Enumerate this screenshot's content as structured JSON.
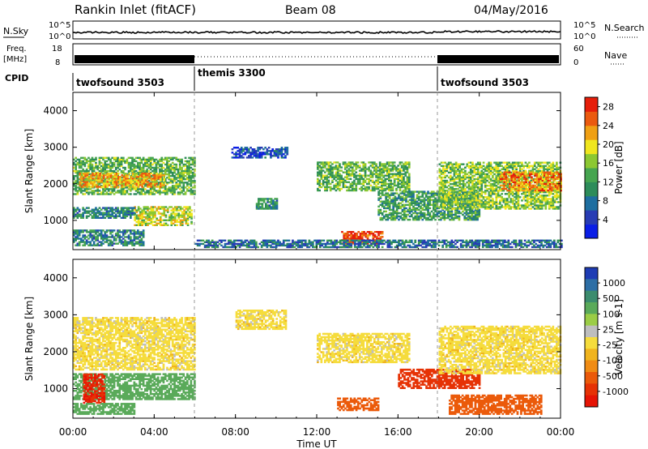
{
  "header": {
    "title": "Rankin Inlet (fitACF)",
    "beam": "Beam 08",
    "date": "04/May/2016"
  },
  "noise_panel": {
    "left_label": "N.Sky",
    "right_label": "N.Search",
    "left_ticks": [
      "10^5",
      "10^0"
    ],
    "right_ticks": [
      "10^5",
      "10^0"
    ]
  },
  "freq_panel": {
    "left_label_1": "Freq.",
    "left_label_2": "[MHz]",
    "left_ticks": [
      "18",
      "8"
    ],
    "right_label": "Nave",
    "right_ticks": [
      "60",
      "0"
    ]
  },
  "cpid_panel": {
    "label": "CPID",
    "segments": [
      "twofsound 3503",
      "themis 3300",
      "twofsound 3503"
    ]
  },
  "axes": {
    "ylabel": "Slant Range [km]",
    "xlabel": "Time UT",
    "yticks": [
      "1000",
      "2000",
      "3000",
      "4000"
    ],
    "xticks": [
      "00:00",
      "04:00",
      "08:00",
      "12:00",
      "16:00",
      "20:00",
      "00:00"
    ]
  },
  "power_colorbar": {
    "label": "Power [dB]",
    "ticks": [
      "4",
      "8",
      "12",
      "16",
      "20",
      "24",
      "28"
    ],
    "colors": [
      "#0a1ee6",
      "#283cb4",
      "#1e6ea0",
      "#2d8c5a",
      "#46a550",
      "#8cc832",
      "#f0e61e",
      "#f0a014",
      "#eb5a0f",
      "#e61e0a"
    ]
  },
  "velocity_colorbar": {
    "label": "Velocity [m s-1]",
    "ticks": [
      "1000",
      "500",
      "100",
      "25",
      "-25",
      "-100",
      "-500",
      "-1000"
    ],
    "colors": [
      "#1e3cb4",
      "#2d6ea5",
      "#3c8c6e",
      "#5aaa5a",
      "#9bcd46",
      "#bebebe",
      "#f5dc3c",
      "#f0b41e",
      "#f08c14",
      "#eb5a0a",
      "#e63205",
      "#e61405"
    ]
  },
  "chart_data": {
    "type": "heatmap",
    "x_range_hours": [
      0,
      24
    ],
    "y_range_km": [
      200,
      4500
    ],
    "cpid_change_hours": [
      6,
      18
    ],
    "power_regions": [
      {
        "t0": 0.0,
        "t1": 6.0,
        "r0": 1700,
        "r1": 2700,
        "db": 14
      },
      {
        "t0": 0.3,
        "t1": 4.5,
        "r0": 1900,
        "r1": 2300,
        "db": 22
      },
      {
        "t0": 3.0,
        "t1": 5.8,
        "r0": 850,
        "r1": 1350,
        "db": 18
      },
      {
        "t0": 0.0,
        "t1": 3.0,
        "r0": 1050,
        "r1": 1350,
        "db": 10
      },
      {
        "t0": 0.0,
        "t1": 3.5,
        "r0": 300,
        "r1": 750,
        "db": 10
      },
      {
        "t0": 7.8,
        "t1": 10.5,
        "r0": 2700,
        "r1": 3000,
        "db": 5
      },
      {
        "t0": 12.0,
        "t1": 16.5,
        "r0": 1800,
        "r1": 2600,
        "db": 14
      },
      {
        "t0": 13.2,
        "t1": 15.2,
        "r0": 350,
        "r1": 700,
        "db": 28
      },
      {
        "t0": 15.0,
        "t1": 20.0,
        "r0": 1000,
        "r1": 1800,
        "db": 12
      },
      {
        "t0": 18.0,
        "t1": 24.0,
        "r0": 1300,
        "r1": 2600,
        "db": 16
      },
      {
        "t0": 21.0,
        "t1": 24.0,
        "r0": 1800,
        "r1": 2300,
        "db": 24
      },
      {
        "t0": 9.0,
        "t1": 10.0,
        "r0": 1300,
        "r1": 1600,
        "db": 10
      },
      {
        "t0": 6.0,
        "t1": 24.0,
        "r0": 250,
        "r1": 450,
        "db": 8
      }
    ],
    "velocity_regions": [
      {
        "t0": 0.0,
        "t1": 6.0,
        "r0": 1500,
        "r1": 2900,
        "v": 0
      },
      {
        "t0": 0.0,
        "t1": 6.0,
        "r0": 700,
        "r1": 1400,
        "v": 150
      },
      {
        "t0": 0.5,
        "t1": 1.5,
        "r0": 600,
        "r1": 1400,
        "v": -500
      },
      {
        "t0": 0.0,
        "t1": 3.0,
        "r0": 300,
        "r1": 600,
        "v": 200
      },
      {
        "t0": 8.0,
        "t1": 10.5,
        "r0": 2600,
        "r1": 3100,
        "v": 0
      },
      {
        "t0": 12.0,
        "t1": 16.5,
        "r0": 1700,
        "r1": 2500,
        "v": 0
      },
      {
        "t0": 13.0,
        "t1": 15.0,
        "r0": 400,
        "r1": 750,
        "v": -200
      },
      {
        "t0": 16.0,
        "t1": 20.0,
        "r0": 1000,
        "r1": 1500,
        "v": -300
      },
      {
        "t0": 18.0,
        "t1": 24.0,
        "r0": 1400,
        "r1": 2700,
        "v": 0
      },
      {
        "t0": 18.5,
        "t1": 23.0,
        "r0": 300,
        "r1": 800,
        "v": -150
      }
    ]
  }
}
